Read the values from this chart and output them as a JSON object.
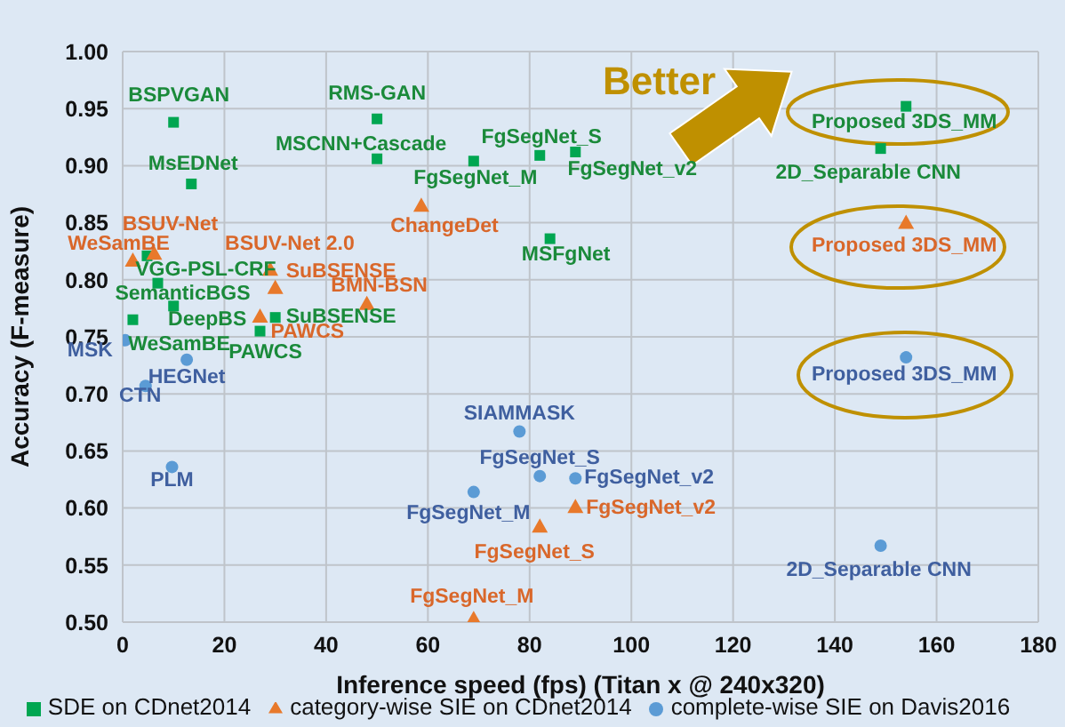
{
  "chart_data": {
    "type": "scatter",
    "xlabel": "Inference speed (fps) (Titan x @ 240x320)",
    "ylabel": "Accuracy (F-measure)",
    "xlim": [
      0,
      180
    ],
    "xticks": [
      0,
      20,
      40,
      60,
      80,
      100,
      120,
      140,
      160,
      180
    ],
    "ylim": [
      0.5,
      1.0
    ],
    "yticks": [
      {
        "value": 0.5,
        "label": "0.50"
      },
      {
        "value": 0.55,
        "label": "0.55"
      },
      {
        "value": 0.6,
        "label": "0.60"
      },
      {
        "value": 0.65,
        "label": "0.65"
      },
      {
        "value": 0.7,
        "label": "0.70"
      },
      {
        "value": 0.75,
        "label": "0.75"
      },
      {
        "value": 0.8,
        "label": "0.80"
      },
      {
        "value": 0.85,
        "label": "0.85"
      },
      {
        "value": 0.9,
        "label": "0.90"
      },
      {
        "value": 0.95,
        "label": "0.95"
      },
      {
        "value": 1.0,
        "label": "1.00"
      }
    ],
    "grid": true,
    "legend": "bottom",
    "annotations": [
      "Better"
    ],
    "series": [
      {
        "name": "SDE on CDnet2014",
        "color": "#00a651",
        "marker": "square",
        "x": [
          10,
          50,
          50,
          13.5,
          69,
          82,
          89,
          84,
          154,
          149,
          4.8,
          6.9,
          10,
          2,
          30,
          27
        ],
        "values": [
          0.938,
          0.941,
          0.906,
          0.884,
          0.904,
          0.909,
          0.912,
          0.836,
          0.952,
          0.915,
          0.821,
          0.797,
          0.777,
          0.765,
          0.767,
          0.755
        ],
        "value_labels": [
          "BSPVGAN",
          "RMS-GAN",
          "MSCNN+Cascade",
          "MsEDNet",
          "FgSegNet_M",
          "FgSegNet_S",
          "FgSegNet_v2",
          "MSFgNet",
          "Proposed 3DS_MM",
          "2D_Separable CNN",
          "VGG-PSL-CRF",
          "SemanticBGS",
          "DeepBS",
          "WeSamBE",
          "SuBSENSE",
          "PAWCS"
        ]
      },
      {
        "name": "category-wise SIE on CDnet2014",
        "color": "#e8792b",
        "marker": "triangle",
        "x": [
          2,
          6.2,
          29,
          30,
          48,
          58.7,
          27,
          154,
          89,
          82,
          69
        ],
        "values": [
          0.817,
          0.823,
          0.809,
          0.793,
          0.779,
          0.865,
          0.768,
          0.85,
          0.601,
          0.584,
          0.503
        ],
        "value_labels": [
          "WeSamBE",
          "BSUV-Net",
          "BSUV-Net 2.0",
          "SuBSENSE",
          "BMN-BSN",
          "ChangeDet",
          "PAWCS",
          "Proposed 3DS_MM",
          "FgSegNet_v2",
          "FgSegNet_S",
          "FgSegNet_M"
        ]
      },
      {
        "name": "complete-wise SIE on Davis2016",
        "color": "#5b9bd5",
        "marker": "circle",
        "x": [
          0.5,
          12.6,
          4.5,
          9.7,
          69,
          78,
          82,
          89,
          154,
          149
        ],
        "values": [
          0.747,
          0.73,
          0.707,
          0.636,
          0.614,
          0.667,
          0.628,
          0.626,
          0.732,
          0.567
        ],
        "value_labels": [
          "MSK",
          "HEGNet",
          "CTN",
          "PLM",
          "FgSegNet_M",
          "SIAMMASK",
          "FgSegNet_S",
          "FgSegNet_v2",
          "Proposed 3DS_MM",
          "2D_Separable CNN"
        ]
      }
    ]
  }
}
